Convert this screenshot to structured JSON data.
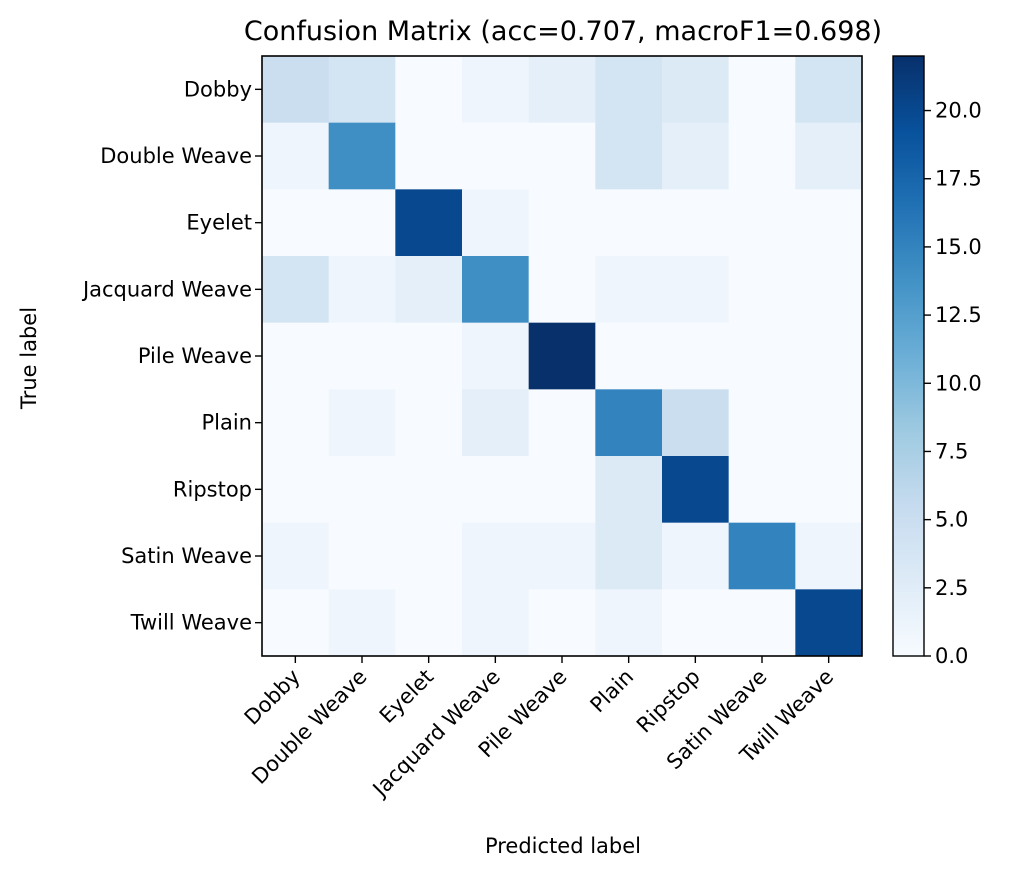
{
  "chart_data": {
    "type": "heatmap",
    "title": "Confusion Matrix (acc=0.707, macroF1=0.698)",
    "xlabel": "Predicted label",
    "ylabel": "True label",
    "x_categories": [
      "Dobby",
      "Double Weave",
      "Eyelet",
      "Jacquard Weave",
      "Pile Weave",
      "Plain",
      "Ripstop",
      "Satin Weave",
      "Twill Weave"
    ],
    "y_categories": [
      "Dobby",
      "Double Weave",
      "Eyelet",
      "Jacquard Weave",
      "Pile Weave",
      "Plain",
      "Ripstop",
      "Satin Weave",
      "Twill Weave"
    ],
    "values": [
      [
        5,
        4,
        0,
        1,
        2,
        4,
        3,
        0,
        4
      ],
      [
        1,
        14,
        0,
        0,
        0,
        4,
        2,
        0,
        2
      ],
      [
        0,
        0,
        20,
        1,
        0,
        0,
        0,
        0,
        0
      ],
      [
        4,
        1,
        2,
        14,
        0,
        1,
        1,
        0,
        0
      ],
      [
        0,
        0,
        0,
        1,
        22,
        0,
        0,
        0,
        0
      ],
      [
        0,
        1,
        0,
        2,
        0,
        15,
        5,
        0,
        0
      ],
      [
        0,
        0,
        0,
        0,
        0,
        3,
        20,
        0,
        0
      ],
      [
        1,
        0,
        0,
        1,
        1,
        3,
        1,
        15,
        1
      ],
      [
        0,
        1,
        0,
        1,
        0,
        1,
        0,
        0,
        20
      ]
    ],
    "colorbar": {
      "min": 0,
      "max": 22,
      "ticks": [
        "0.0",
        "2.5",
        "5.0",
        "7.5",
        "10.0",
        "12.5",
        "15.0",
        "17.5",
        "20.0"
      ],
      "colormap": "Blues"
    },
    "grid": false
  }
}
